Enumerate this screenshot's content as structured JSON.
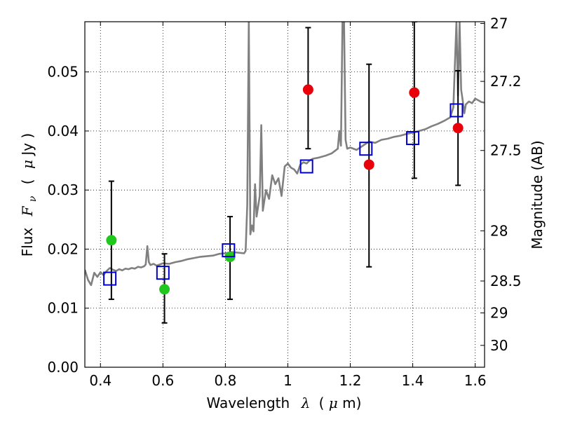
{
  "chart_data": {
    "type": "scatter",
    "xlabel": "Wavelength",
    "xlabel_symbol": "λ",
    "xlabel_units_open": "(",
    "xlabel_units_mu": "μ",
    "xlabel_units_close": "m)",
    "ylabel": "Flux",
    "ylabel_symbol": "F",
    "ylabel_subscript": "ν",
    "ylabel_units_open": "(",
    "ylabel_units_mu": "μ",
    "ylabel_units_close": "Jy )",
    "y2label": "Magnitude (AB)",
    "xlim": [
      0.35,
      1.63
    ],
    "ylim": [
      0.0,
      0.0585
    ],
    "grid": true,
    "x_ticks": [
      0.4,
      0.6,
      0.8,
      1.0,
      1.2,
      1.4,
      1.6
    ],
    "x_tick_labels": [
      "0.4",
      "0.6",
      "0.8",
      "1",
      "1.2",
      "1.4",
      "1.6"
    ],
    "y_ticks": [
      0.0,
      0.01,
      0.02,
      0.03,
      0.04,
      0.05
    ],
    "y_tick_labels": [
      "0.00",
      "0.01",
      "0.02",
      "0.03",
      "0.04",
      "0.05"
    ],
    "y2_ticks": [
      {
        "label": "27",
        "flux": 0.0582
      },
      {
        "label": "27.2",
        "flux": 0.0484
      },
      {
        "label": "27.5",
        "flux": 0.0367
      },
      {
        "label": "28",
        "flux": 0.0231
      },
      {
        "label": "28.5",
        "flux": 0.0146
      },
      {
        "label": "29",
        "flux": 0.0092
      },
      {
        "label": "30",
        "flux": 0.0037
      }
    ],
    "series": [
      {
        "name": "model-spectrum",
        "kind": "line",
        "color": "#808080",
        "points": [
          [
            0.35,
            0.0165
          ],
          [
            0.36,
            0.0148
          ],
          [
            0.37,
            0.0139
          ],
          [
            0.38,
            0.016
          ],
          [
            0.39,
            0.0153
          ],
          [
            0.4,
            0.0161
          ],
          [
            0.41,
            0.0156
          ],
          [
            0.42,
            0.0163
          ],
          [
            0.43,
            0.0168
          ],
          [
            0.44,
            0.0165
          ],
          [
            0.45,
            0.0163
          ],
          [
            0.46,
            0.0166
          ],
          [
            0.47,
            0.0164
          ],
          [
            0.48,
            0.0167
          ],
          [
            0.49,
            0.0166
          ],
          [
            0.5,
            0.0168
          ],
          [
            0.51,
            0.0167
          ],
          [
            0.52,
            0.017
          ],
          [
            0.53,
            0.0169
          ],
          [
            0.54,
            0.0171
          ],
          [
            0.545,
            0.0174
          ],
          [
            0.55,
            0.0205
          ],
          [
            0.555,
            0.0178
          ],
          [
            0.56,
            0.0173
          ],
          [
            0.57,
            0.0175
          ],
          [
            0.58,
            0.0172
          ],
          [
            0.59,
            0.0174
          ],
          [
            0.6,
            0.0176
          ],
          [
            0.62,
            0.0175
          ],
          [
            0.64,
            0.0178
          ],
          [
            0.66,
            0.018
          ],
          [
            0.68,
            0.0183
          ],
          [
            0.7,
            0.0185
          ],
          [
            0.72,
            0.0187
          ],
          [
            0.74,
            0.0188
          ],
          [
            0.76,
            0.0189
          ],
          [
            0.78,
            0.0192
          ],
          [
            0.8,
            0.0193
          ],
          [
            0.82,
            0.0195
          ],
          [
            0.84,
            0.0194
          ],
          [
            0.86,
            0.0193
          ],
          [
            0.865,
            0.0197
          ],
          [
            0.87,
            0.0275
          ],
          [
            0.875,
            0.0585
          ],
          [
            0.88,
            0.0225
          ],
          [
            0.885,
            0.024
          ],
          [
            0.89,
            0.023
          ],
          [
            0.895,
            0.031
          ],
          [
            0.9,
            0.0255
          ],
          [
            0.91,
            0.029
          ],
          [
            0.915,
            0.041
          ],
          [
            0.92,
            0.0265
          ],
          [
            0.93,
            0.03
          ],
          [
            0.94,
            0.0285
          ],
          [
            0.95,
            0.0325
          ],
          [
            0.96,
            0.031
          ],
          [
            0.97,
            0.032
          ],
          [
            0.98,
            0.029
          ],
          [
            0.99,
            0.034
          ],
          [
            1.0,
            0.0345
          ],
          [
            1.01,
            0.0338
          ],
          [
            1.02,
            0.0335
          ],
          [
            1.03,
            0.0328
          ],
          [
            1.04,
            0.0343
          ],
          [
            1.05,
            0.0347
          ],
          [
            1.06,
            0.0345
          ],
          [
            1.07,
            0.035
          ],
          [
            1.08,
            0.0353
          ],
          [
            1.1,
            0.0355
          ],
          [
            1.12,
            0.0358
          ],
          [
            1.14,
            0.0362
          ],
          [
            1.16,
            0.037
          ],
          [
            1.165,
            0.04
          ],
          [
            1.17,
            0.0375
          ],
          [
            1.175,
            0.0585
          ],
          [
            1.18,
            0.0585
          ],
          [
            1.185,
            0.0385
          ],
          [
            1.19,
            0.037
          ],
          [
            1.2,
            0.0372
          ],
          [
            1.22,
            0.0368
          ],
          [
            1.24,
            0.0375
          ],
          [
            1.26,
            0.0382
          ],
          [
            1.28,
            0.038
          ],
          [
            1.3,
            0.0385
          ],
          [
            1.32,
            0.0387
          ],
          [
            1.34,
            0.039
          ],
          [
            1.36,
            0.0392
          ],
          [
            1.38,
            0.0395
          ],
          [
            1.4,
            0.0397
          ],
          [
            1.42,
            0.04
          ],
          [
            1.44,
            0.0403
          ],
          [
            1.46,
            0.0408
          ],
          [
            1.48,
            0.0412
          ],
          [
            1.5,
            0.0417
          ],
          [
            1.52,
            0.0423
          ],
          [
            1.53,
            0.044
          ],
          [
            1.54,
            0.0585
          ],
          [
            1.545,
            0.046
          ],
          [
            1.55,
            0.0585
          ],
          [
            1.555,
            0.047
          ],
          [
            1.56,
            0.0452
          ],
          [
            1.565,
            0.043
          ],
          [
            1.57,
            0.0445
          ],
          [
            1.58,
            0.045
          ],
          [
            1.59,
            0.0447
          ],
          [
            1.6,
            0.0455
          ],
          [
            1.61,
            0.0452
          ],
          [
            1.62,
            0.0449
          ],
          [
            1.63,
            0.0448
          ]
        ]
      },
      {
        "name": "model-photometry",
        "kind": "open-square",
        "color": "#0000cc",
        "x": [
          0.43,
          0.6,
          0.81,
          1.06,
          1.25,
          1.4,
          1.54
        ],
        "y": [
          0.015,
          0.016,
          0.0198,
          0.034,
          0.037,
          0.0388,
          0.0435
        ]
      },
      {
        "name": "observed-detections",
        "kind": "circle",
        "color": "#e8000a",
        "x": [
          1.065,
          1.26,
          1.405,
          1.545
        ],
        "y": [
          0.047,
          0.0343,
          0.0465,
          0.0405
        ]
      },
      {
        "name": "observed-other",
        "kind": "circle",
        "color": "#1fc71f",
        "x": [
          0.435,
          0.605,
          0.815
        ],
        "y": [
          0.0215,
          0.0132,
          0.0187
        ]
      },
      {
        "name": "error-bars",
        "kind": "errorbar",
        "color": "#000000",
        "x": [
          0.435,
          0.605,
          0.815,
          1.065,
          1.26,
          1.405,
          1.545
        ],
        "lower": [
          0.0115,
          0.0075,
          0.0115,
          0.037,
          0.017,
          0.032,
          0.0308
        ],
        "upper": [
          0.0315,
          0.0192,
          0.0255,
          0.0575,
          0.0513,
          0.0585,
          0.0502
        ]
      }
    ]
  }
}
